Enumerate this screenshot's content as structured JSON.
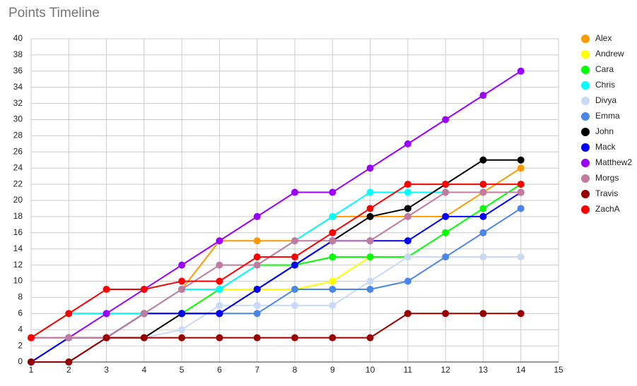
{
  "chart_data": {
    "type": "line",
    "title": "Points Timeline",
    "x": [
      1,
      2,
      3,
      4,
      5,
      6,
      7,
      8,
      9,
      10,
      11,
      12,
      13,
      14
    ],
    "xlim": [
      1,
      15
    ],
    "xticks": [
      1,
      2,
      3,
      4,
      5,
      6,
      7,
      8,
      9,
      10,
      11,
      12,
      13,
      14,
      15
    ],
    "ylim": [
      0,
      40
    ],
    "yticks": [
      0,
      2,
      4,
      6,
      8,
      10,
      12,
      14,
      16,
      18,
      20,
      22,
      24,
      26,
      28,
      30,
      32,
      34,
      36,
      38,
      40
    ],
    "grid": true,
    "legend": "right",
    "series": [
      {
        "name": "Alex",
        "color": "#ff9900",
        "values": [
          3,
          6,
          6,
          6,
          9,
          15,
          15,
          15,
          18,
          18,
          18,
          18,
          21,
          24
        ]
      },
      {
        "name": "Andrew",
        "color": "#ffff00",
        "values": [
          0,
          3,
          3,
          6,
          6,
          9,
          9,
          9,
          10,
          13,
          13,
          13,
          13,
          13
        ]
      },
      {
        "name": "Cara",
        "color": "#00ff00",
        "values": [
          0,
          3,
          3,
          6,
          6,
          9,
          12,
          12,
          13,
          13,
          13,
          16,
          19,
          22
        ]
      },
      {
        "name": "Chris",
        "color": "#00ffff",
        "values": [
          3,
          6,
          6,
          6,
          9,
          9,
          12,
          15,
          18,
          21,
          21,
          21,
          21,
          21
        ]
      },
      {
        "name": "Divya",
        "color": "#c9daf8",
        "values": [
          3,
          3,
          3,
          3,
          4,
          7,
          7,
          7,
          7,
          10,
          13,
          13,
          13,
          13
        ]
      },
      {
        "name": "Emma",
        "color": "#4a86e8",
        "values": [
          0,
          3,
          3,
          6,
          6,
          6,
          6,
          9,
          9,
          9,
          10,
          13,
          16,
          19
        ]
      },
      {
        "name": "John",
        "color": "#000000",
        "values": [
          0,
          0,
          3,
          3,
          6,
          6,
          9,
          12,
          15,
          18,
          19,
          22,
          25,
          25
        ]
      },
      {
        "name": "Mack",
        "color": "#0000ff",
        "values": [
          0,
          3,
          3,
          6,
          6,
          6,
          9,
          12,
          15,
          15,
          15,
          18,
          18,
          21
        ]
      },
      {
        "name": "Matthew2",
        "color": "#9900ff",
        "values": [
          3,
          3,
          6,
          9,
          12,
          15,
          18,
          21,
          21,
          24,
          27,
          30,
          33,
          36
        ]
      },
      {
        "name": "Morgs",
        "color": "#c27ba0",
        "values": [
          3,
          3,
          3,
          6,
          9,
          12,
          12,
          15,
          15,
          15,
          18,
          21,
          21,
          21
        ]
      },
      {
        "name": "Travis",
        "color": "#980000",
        "values": [
          0,
          0,
          3,
          3,
          3,
          3,
          3,
          3,
          3,
          3,
          6,
          6,
          6,
          6
        ]
      },
      {
        "name": "ZachA",
        "color": "#ff0000",
        "values": [
          3,
          6,
          9,
          9,
          10,
          10,
          13,
          13,
          16,
          19,
          22,
          22,
          22,
          22
        ]
      }
    ]
  }
}
